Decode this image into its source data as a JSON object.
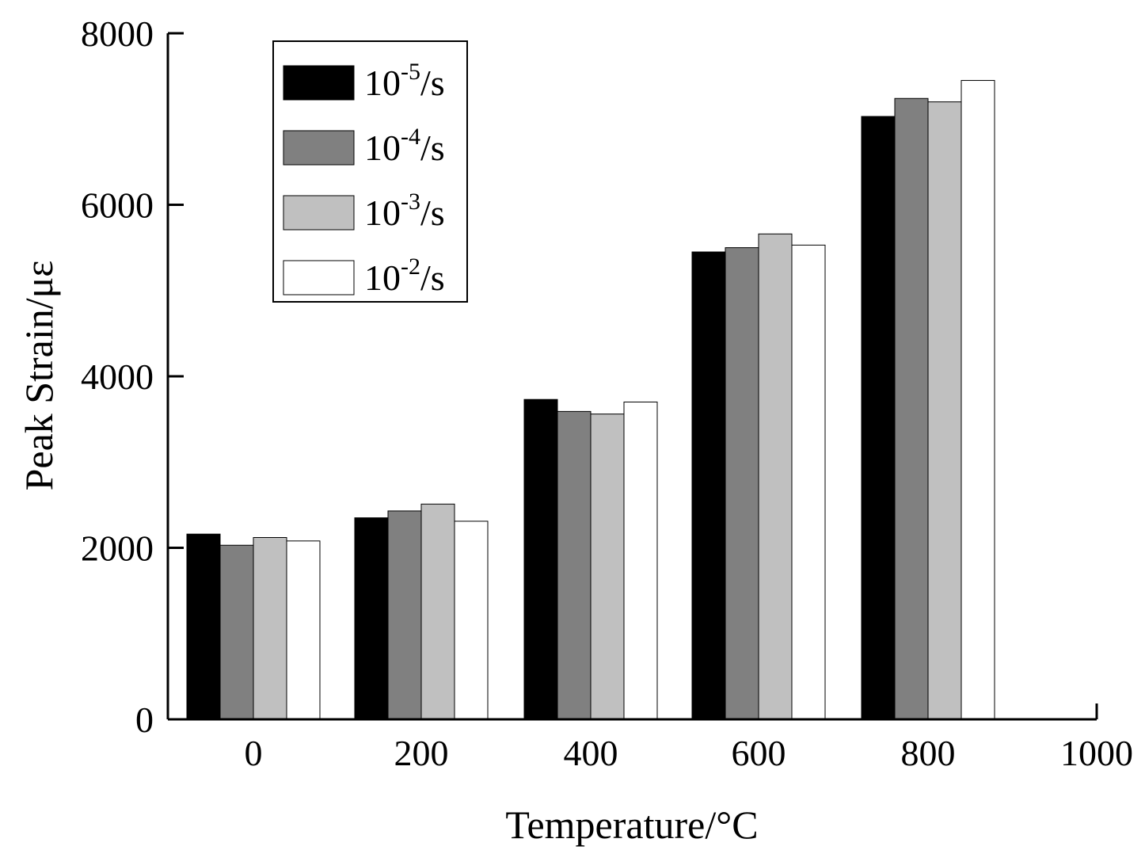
{
  "chart_data": {
    "type": "bar",
    "title": "",
    "xlabel": "Temperature/°C",
    "ylabel": "Peak Strain/με",
    "categories": [
      "0",
      "200",
      "400",
      "600",
      "800",
      "1000"
    ],
    "ylim": [
      0,
      8000
    ],
    "yticks": [
      0,
      2000,
      4000,
      6000,
      8000
    ],
    "grid": false,
    "legend_position": "top-left",
    "series": [
      {
        "name": "10-5/s",
        "base": "10",
        "exponent": "-5",
        "unit": "/s",
        "color": "#000000",
        "values": [
          2160,
          2350,
          3730,
          5450,
          7030,
          null
        ]
      },
      {
        "name": "10-4/s",
        "base": "10",
        "exponent": "-4",
        "unit": "/s",
        "color": "#808080",
        "values": [
          2030,
          2430,
          3590,
          5500,
          7240,
          null
        ]
      },
      {
        "name": "10-3/s",
        "base": "10",
        "exponent": "-3",
        "unit": "/s",
        "color": "#c0c0c0",
        "values": [
          2120,
          2510,
          3560,
          5660,
          7200,
          null
        ]
      },
      {
        "name": "10-2/s",
        "base": "10",
        "exponent": "-2",
        "unit": "/s",
        "color": "#ffffff",
        "values": [
          2080,
          2310,
          3700,
          5530,
          7450,
          null
        ]
      }
    ]
  }
}
